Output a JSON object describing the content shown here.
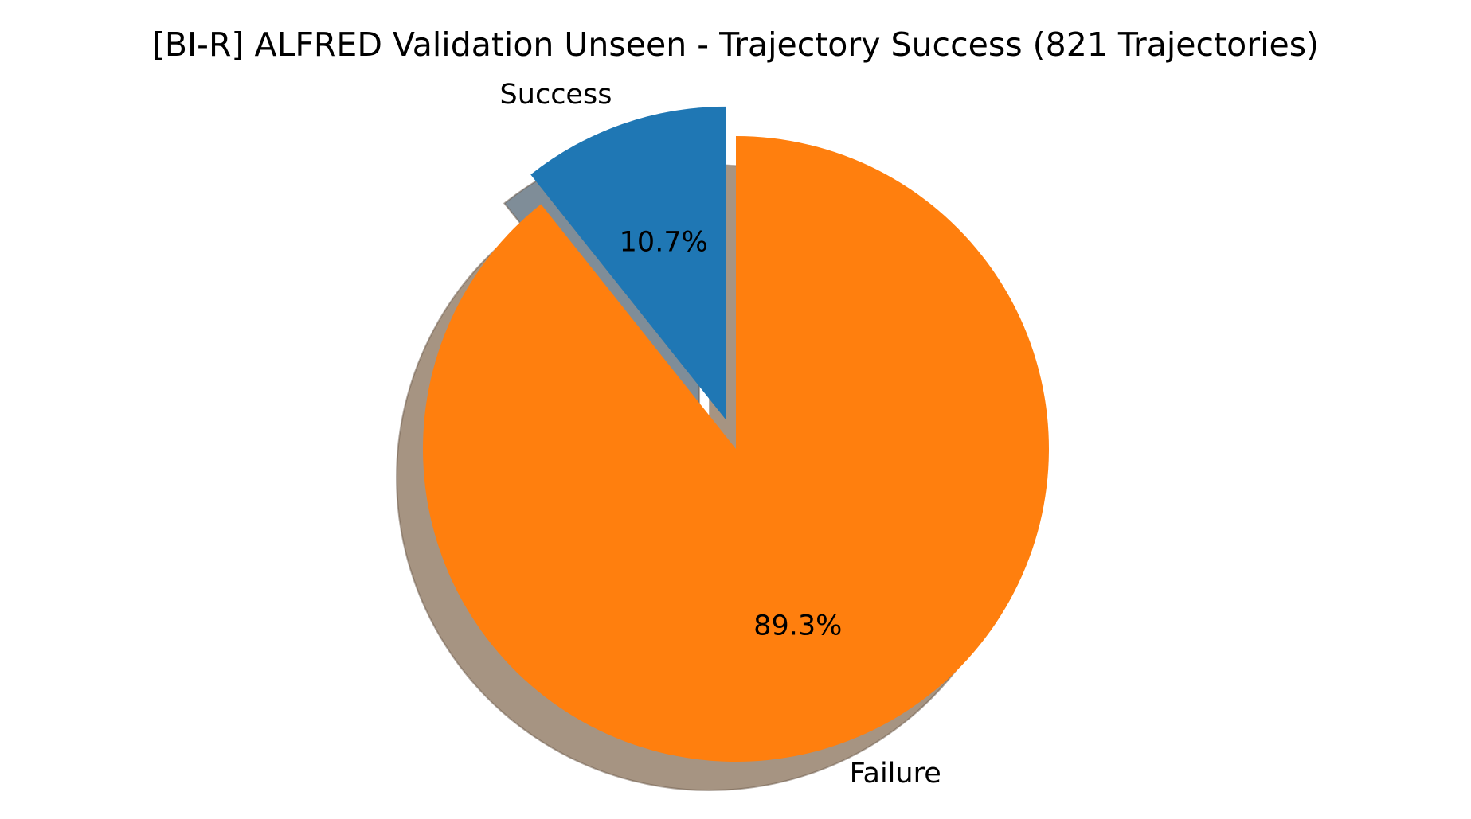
{
  "chart_data": {
    "type": "pie",
    "title": "[BI-R] ALFRED Validation Unseen - Trajectory Success (821 Trajectories)",
    "slices": [
      {
        "label": "Success",
        "value": 10.7,
        "pct_label": "10.7%",
        "color": "#1f77b4",
        "shadow_color": "#7f8d98",
        "exploded": true
      },
      {
        "label": "Failure",
        "value": 89.3,
        "pct_label": "89.3%",
        "color": "#ff7f0e",
        "shadow_color": "#a69482",
        "exploded": false
      }
    ],
    "start_angle_deg": 90,
    "direction": "counterclockwise",
    "shadow": true,
    "legend": "none"
  }
}
